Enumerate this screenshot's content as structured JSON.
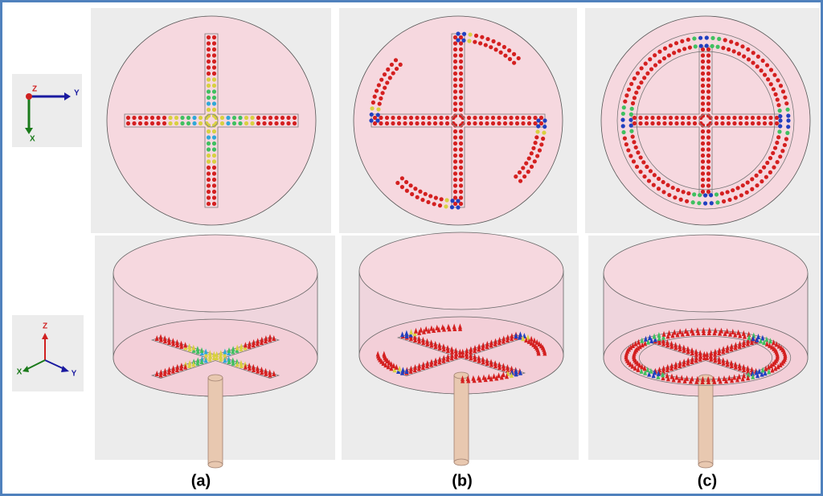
{
  "axes_top": {
    "z": "Z",
    "y": "Y",
    "x": "X"
  },
  "axes_iso": {
    "z": "Z",
    "x": "X",
    "y": "Y"
  },
  "panels": [
    {
      "label": "(a)"
    },
    {
      "label": "(b)"
    },
    {
      "label": "(c)"
    }
  ]
}
